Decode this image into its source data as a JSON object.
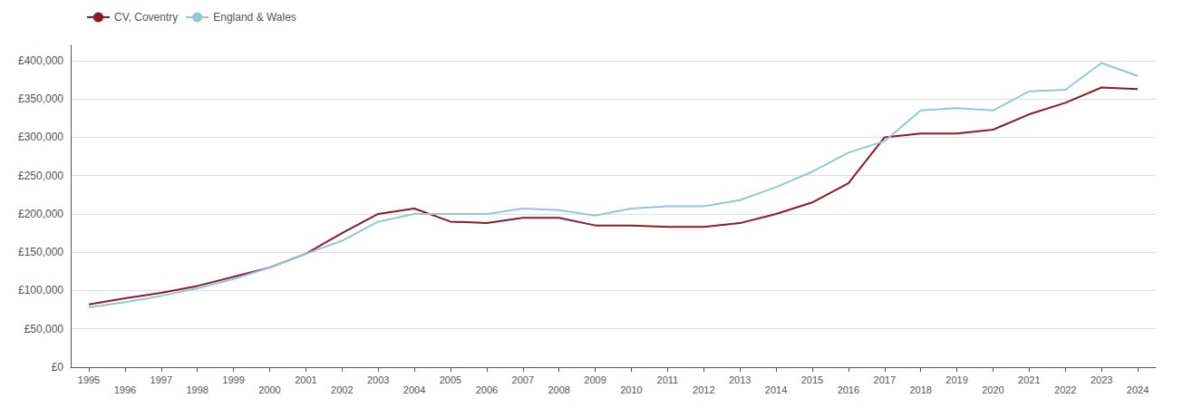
{
  "chart_data": {
    "type": "line",
    "x": [
      1995,
      1996,
      1997,
      1998,
      1999,
      2000,
      2001,
      2002,
      2003,
      2004,
      2005,
      2006,
      2007,
      2008,
      2009,
      2010,
      2011,
      2012,
      2013,
      2014,
      2015,
      2016,
      2017,
      2018,
      2019,
      2020,
      2021,
      2022,
      2023,
      2024
    ],
    "series": [
      {
        "name": "CV, Coventry",
        "color": "#8B1A2B",
        "values": [
          82000,
          90000,
          97000,
          106000,
          118000,
          130000,
          148000,
          175000,
          200000,
          207000,
          190000,
          188000,
          195000,
          195000,
          185000,
          185000,
          183000,
          183000,
          188000,
          200000,
          215000,
          240000,
          300000,
          305000,
          305000,
          310000,
          330000,
          345000,
          365000,
          363000
        ]
      },
      {
        "name": "England & Wales",
        "color": "#94C6D8",
        "values": [
          78000,
          85000,
          93000,
          103000,
          115000,
          130000,
          148000,
          165000,
          190000,
          200000,
          200000,
          200000,
          207000,
          205000,
          198000,
          207000,
          210000,
          210000,
          218000,
          235000,
          255000,
          280000,
          295000,
          335000,
          338000,
          335000,
          360000,
          362000,
          397000,
          380000
        ]
      }
    ],
    "xlim": [
      1994.5,
      2024.5
    ],
    "xticks": [
      1995,
      1996,
      1997,
      1998,
      1999,
      2000,
      2001,
      2002,
      2003,
      2004,
      2005,
      2006,
      2007,
      2008,
      2009,
      2010,
      2011,
      2012,
      2013,
      2014,
      2015,
      2016,
      2017,
      2018,
      2019,
      2020,
      2021,
      2022,
      2023,
      2024
    ],
    "ylim": [
      0,
      420000
    ],
    "yticks": [
      {
        "value": 0,
        "label": "£0"
      },
      {
        "value": 50000,
        "label": "£50,000"
      },
      {
        "value": 100000,
        "label": "£100,000"
      },
      {
        "value": 150000,
        "label": "£150,000"
      },
      {
        "value": 200000,
        "label": "£200,000"
      },
      {
        "value": 250000,
        "label": "£250,000"
      },
      {
        "value": 300000,
        "label": "£300,000"
      },
      {
        "value": 350000,
        "label": "£350,000"
      },
      {
        "value": 400000,
        "label": "£400,000"
      }
    ],
    "grid": true,
    "legend": "upper left"
  }
}
